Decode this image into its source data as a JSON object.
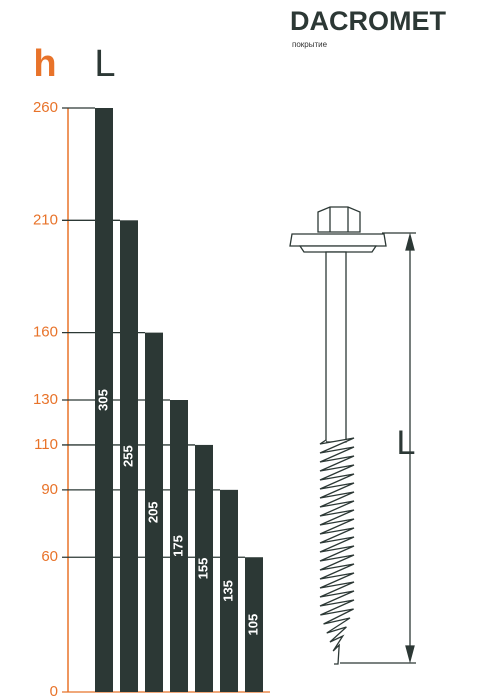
{
  "brand": {
    "name": "DACROMET",
    "subtitle": "покрытие"
  },
  "chart_data": {
    "type": "bar",
    "y_label": "h",
    "bar_label_title": "L",
    "values": [
      260,
      210,
      160,
      130,
      110,
      90,
      60
    ],
    "bar_labels": [
      305,
      255,
      205,
      175,
      155,
      135,
      105
    ],
    "color": "#2c3835",
    "axis_color": "#e8732a",
    "ylim": [
      0,
      260
    ],
    "yticks": [
      0,
      60,
      90,
      110,
      130,
      160,
      210,
      260
    ]
  },
  "screw": {
    "dimension_label": "L"
  }
}
